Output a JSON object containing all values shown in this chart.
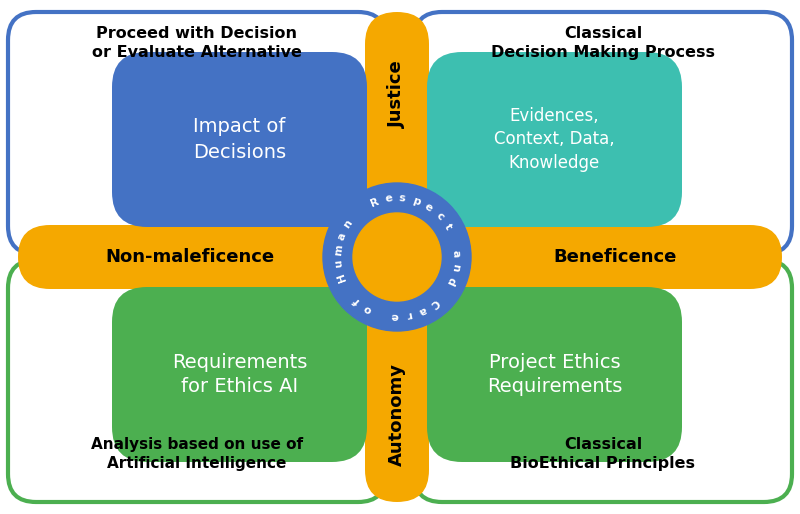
{
  "colors": {
    "blue": "#4472C4",
    "teal": "#3DBFB0",
    "green": "#4CAF50",
    "gold": "#F5A800",
    "white": "#FFFFFF",
    "black": "#000000",
    "border_blue": "#4472C4",
    "border_green": "#4CAF50",
    "center_ring": "#4472C4",
    "center_inner": "#F5A800"
  },
  "quadrant_titles": {
    "top_left": "Proceed with Decision\nor Evaluate Alternative",
    "top_right": "Classical\nDecision Making Process",
    "bottom_left": "Analysis based on use of\nArtificial Intelligence",
    "bottom_right": "Classical\nBioEthical Principles"
  },
  "petal_texts": {
    "top_left": "Impact of\nDecisions",
    "top_right": "Evidences,\nContext, Data,\nKnowledge",
    "bottom_left": "Requirements\nfor Ethics AI",
    "bottom_right": "Project Ethics\nRequirements"
  },
  "horizontal_bar": {
    "left_text": "Non-maleficence",
    "right_text": "Beneficence"
  },
  "vertical_bar": {
    "top_text": "Justice",
    "bottom_text": "Autonomy"
  },
  "center_text": "Respect and Care of Human",
  "figure_width": 8.0,
  "figure_height": 5.14
}
